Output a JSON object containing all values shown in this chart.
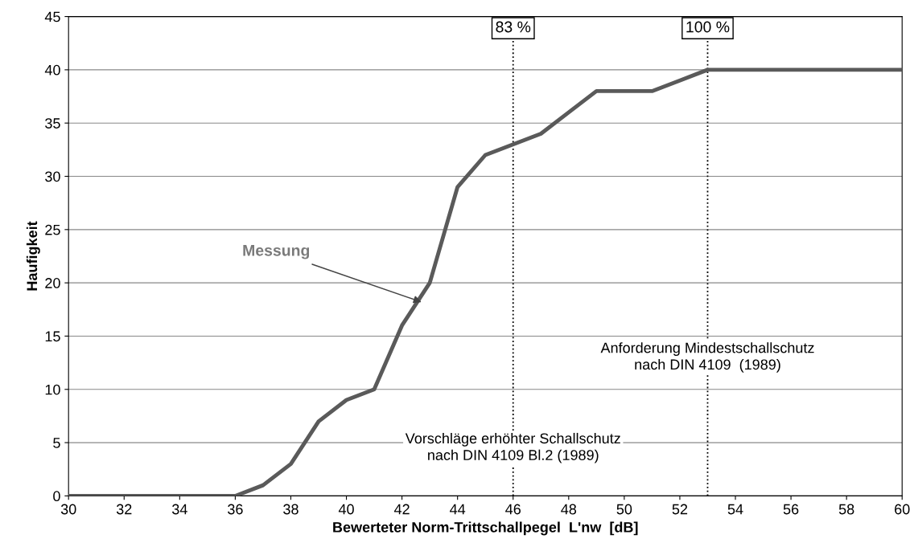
{
  "chart_data": {
    "type": "line",
    "xlabel": "Bewerteter Norm-Trittschallpegel  L'nw  [dB]",
    "ylabel": "Haufigkeit",
    "x": [
      30,
      31,
      32,
      33,
      34,
      35,
      36,
      37,
      38,
      39,
      40,
      41,
      42,
      43,
      44,
      45,
      46,
      47,
      48,
      49,
      50,
      51,
      52,
      53,
      54,
      55,
      56,
      57,
      58,
      59,
      60
    ],
    "series": [
      {
        "color": "#5a5a5a",
        "values": [
          0,
          0,
          0,
          0,
          0,
          0,
          0,
          1,
          3,
          7,
          9,
          10,
          16,
          20,
          29,
          32,
          33,
          34,
          36,
          38,
          38,
          38,
          39,
          40,
          40,
          40,
          40,
          40,
          40,
          40,
          40
        ]
      }
    ],
    "xlim": [
      30,
      60
    ],
    "xticks": [
      30,
      32,
      34,
      36,
      38,
      40,
      42,
      44,
      46,
      48,
      50,
      52,
      54,
      56,
      58,
      60
    ],
    "ylim": [
      0,
      45
    ],
    "yticks": [
      0,
      5,
      10,
      15,
      20,
      25,
      30,
      35,
      40,
      45
    ],
    "grid": "y",
    "marker": "none",
    "line_style": "solid",
    "ref_lines": [
      {
        "axis": "x",
        "value": 46,
        "color": "#000000",
        "line_style": "dotted"
      },
      {
        "axis": "x",
        "value": 53,
        "color": "#000000",
        "line_style": "dotted"
      }
    ],
    "annotations": [
      {
        "text": "83 %",
        "x": 46,
        "y": 43.9
      },
      {
        "text": "100 %",
        "x": 53,
        "y": 43.9
      },
      {
        "text": "Messung",
        "x": 42.7,
        "y": 18.2
      },
      {
        "text": "Vorschläge erhöhter Schallschutz\nnach DIN 4109 Bl.2 (1989)",
        "x": 46,
        "y": 4.5
      },
      {
        "text": "Anforderung Mindestschallschutz\nnach DIN 4109  (1989)",
        "x": 53,
        "y": 13
      }
    ]
  }
}
